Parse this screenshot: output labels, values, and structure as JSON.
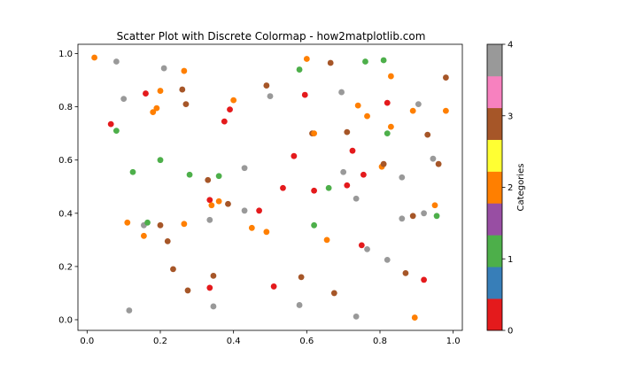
{
  "chart_data": {
    "type": "scatter",
    "title": "Scatter Plot with Discrete Colormap - how2matplotlib.com",
    "xlabel": "",
    "ylabel": "",
    "xlim": [
      -0.025,
      1.025
    ],
    "ylim": [
      -0.04,
      1.035
    ],
    "x_ticks": [
      0.0,
      0.2,
      0.4,
      0.6,
      0.8,
      1.0
    ],
    "x_tick_labels": [
      "0.0",
      "0.2",
      "0.4",
      "0.6",
      "0.8",
      "1.0"
    ],
    "y_ticks": [
      0.0,
      0.2,
      0.4,
      0.6,
      0.8,
      1.0
    ],
    "y_tick_labels": [
      "0.0",
      "0.2",
      "0.4",
      "0.6",
      "0.8",
      "1.0"
    ],
    "grid": false,
    "colormap": {
      "name": "Set1",
      "colors": [
        "#e41a1c",
        "#377eb8",
        "#4daf4a",
        "#984ea3",
        "#ff7f00",
        "#ffff33",
        "#a65628",
        "#f781bf",
        "#999999"
      ],
      "ticks": [
        0,
        1,
        2,
        3,
        4
      ],
      "tick_labels": [
        "0",
        "1",
        "2",
        "3",
        "4"
      ],
      "label": "Categories",
      "vmin": 0,
      "vmax": 4
    },
    "points": [
      {
        "x": 0.02,
        "y": 0.985,
        "c": 2
      },
      {
        "x": 0.08,
        "y": 0.97,
        "c": 4
      },
      {
        "x": 0.21,
        "y": 0.945,
        "c": 4
      },
      {
        "x": 0.265,
        "y": 0.935,
        "c": 2
      },
      {
        "x": 0.58,
        "y": 0.94,
        "c": 1
      },
      {
        "x": 0.6,
        "y": 0.98,
        "c": 2
      },
      {
        "x": 0.665,
        "y": 0.965,
        "c": 3
      },
      {
        "x": 0.76,
        "y": 0.97,
        "c": 1
      },
      {
        "x": 0.81,
        "y": 0.975,
        "c": 1
      },
      {
        "x": 0.83,
        "y": 0.915,
        "c": 2
      },
      {
        "x": 0.98,
        "y": 0.91,
        "c": 3
      },
      {
        "x": 0.1,
        "y": 0.83,
        "c": 4
      },
      {
        "x": 0.16,
        "y": 0.85,
        "c": 0
      },
      {
        "x": 0.2,
        "y": 0.86,
        "c": 2
      },
      {
        "x": 0.26,
        "y": 0.865,
        "c": 3
      },
      {
        "x": 0.49,
        "y": 0.88,
        "c": 3
      },
      {
        "x": 0.5,
        "y": 0.84,
        "c": 4
      },
      {
        "x": 0.595,
        "y": 0.845,
        "c": 0
      },
      {
        "x": 0.695,
        "y": 0.855,
        "c": 4
      },
      {
        "x": 0.27,
        "y": 0.81,
        "c": 3
      },
      {
        "x": 0.4,
        "y": 0.825,
        "c": 2
      },
      {
        "x": 0.39,
        "y": 0.79,
        "c": 0
      },
      {
        "x": 0.19,
        "y": 0.795,
        "c": 2
      },
      {
        "x": 0.18,
        "y": 0.78,
        "c": 2
      },
      {
        "x": 0.74,
        "y": 0.805,
        "c": 2
      },
      {
        "x": 0.82,
        "y": 0.815,
        "c": 0
      },
      {
        "x": 0.89,
        "y": 0.785,
        "c": 2
      },
      {
        "x": 0.905,
        "y": 0.81,
        "c": 4
      },
      {
        "x": 0.98,
        "y": 0.785,
        "c": 2
      },
      {
        "x": 0.065,
        "y": 0.735,
        "c": 0
      },
      {
        "x": 0.08,
        "y": 0.71,
        "c": 1
      },
      {
        "x": 0.375,
        "y": 0.745,
        "c": 0
      },
      {
        "x": 0.615,
        "y": 0.7,
        "c": 3
      },
      {
        "x": 0.62,
        "y": 0.7,
        "c": 2
      },
      {
        "x": 0.71,
        "y": 0.705,
        "c": 3
      },
      {
        "x": 0.765,
        "y": 0.765,
        "c": 2
      },
      {
        "x": 0.82,
        "y": 0.7,
        "c": 1
      },
      {
        "x": 0.83,
        "y": 0.725,
        "c": 2
      },
      {
        "x": 0.93,
        "y": 0.695,
        "c": 3
      },
      {
        "x": 0.2,
        "y": 0.6,
        "c": 1
      },
      {
        "x": 0.125,
        "y": 0.555,
        "c": 1
      },
      {
        "x": 0.28,
        "y": 0.545,
        "c": 1
      },
      {
        "x": 0.33,
        "y": 0.525,
        "c": 3
      },
      {
        "x": 0.36,
        "y": 0.54,
        "c": 1
      },
      {
        "x": 0.43,
        "y": 0.57,
        "c": 4
      },
      {
        "x": 0.565,
        "y": 0.615,
        "c": 0
      },
      {
        "x": 0.7,
        "y": 0.555,
        "c": 4
      },
      {
        "x": 0.725,
        "y": 0.635,
        "c": 0
      },
      {
        "x": 0.755,
        "y": 0.545,
        "c": 0
      },
      {
        "x": 0.805,
        "y": 0.575,
        "c": 2
      },
      {
        "x": 0.81,
        "y": 0.585,
        "c": 3
      },
      {
        "x": 0.86,
        "y": 0.535,
        "c": 4
      },
      {
        "x": 0.945,
        "y": 0.605,
        "c": 4
      },
      {
        "x": 0.96,
        "y": 0.585,
        "c": 3
      },
      {
        "x": 0.535,
        "y": 0.495,
        "c": 0
      },
      {
        "x": 0.62,
        "y": 0.485,
        "c": 0
      },
      {
        "x": 0.66,
        "y": 0.495,
        "c": 1
      },
      {
        "x": 0.71,
        "y": 0.505,
        "c": 0
      },
      {
        "x": 0.335,
        "y": 0.45,
        "c": 0
      },
      {
        "x": 0.34,
        "y": 0.43,
        "c": 2
      },
      {
        "x": 0.36,
        "y": 0.445,
        "c": 2
      },
      {
        "x": 0.385,
        "y": 0.435,
        "c": 3
      },
      {
        "x": 0.43,
        "y": 0.41,
        "c": 4
      },
      {
        "x": 0.47,
        "y": 0.41,
        "c": 0
      },
      {
        "x": 0.735,
        "y": 0.455,
        "c": 4
      },
      {
        "x": 0.89,
        "y": 0.39,
        "c": 3
      },
      {
        "x": 0.86,
        "y": 0.38,
        "c": 4
      },
      {
        "x": 0.92,
        "y": 0.4,
        "c": 4
      },
      {
        "x": 0.95,
        "y": 0.43,
        "c": 2
      },
      {
        "x": 0.955,
        "y": 0.39,
        "c": 1
      },
      {
        "x": 0.11,
        "y": 0.365,
        "c": 2
      },
      {
        "x": 0.155,
        "y": 0.355,
        "c": 4
      },
      {
        "x": 0.165,
        "y": 0.365,
        "c": 1
      },
      {
        "x": 0.155,
        "y": 0.315,
        "c": 2
      },
      {
        "x": 0.2,
        "y": 0.355,
        "c": 3
      },
      {
        "x": 0.265,
        "y": 0.36,
        "c": 2
      },
      {
        "x": 0.335,
        "y": 0.375,
        "c": 4
      },
      {
        "x": 0.45,
        "y": 0.345,
        "c": 2
      },
      {
        "x": 0.49,
        "y": 0.33,
        "c": 2
      },
      {
        "x": 0.62,
        "y": 0.355,
        "c": 1
      },
      {
        "x": 0.22,
        "y": 0.295,
        "c": 3
      },
      {
        "x": 0.655,
        "y": 0.3,
        "c": 2
      },
      {
        "x": 0.75,
        "y": 0.28,
        "c": 0
      },
      {
        "x": 0.765,
        "y": 0.265,
        "c": 4
      },
      {
        "x": 0.235,
        "y": 0.19,
        "c": 3
      },
      {
        "x": 0.82,
        "y": 0.225,
        "c": 4
      },
      {
        "x": 0.345,
        "y": 0.165,
        "c": 3
      },
      {
        "x": 0.585,
        "y": 0.16,
        "c": 3
      },
      {
        "x": 0.87,
        "y": 0.175,
        "c": 3
      },
      {
        "x": 0.92,
        "y": 0.15,
        "c": 0
      },
      {
        "x": 0.275,
        "y": 0.11,
        "c": 3
      },
      {
        "x": 0.335,
        "y": 0.12,
        "c": 0
      },
      {
        "x": 0.51,
        "y": 0.125,
        "c": 0
      },
      {
        "x": 0.675,
        "y": 0.1,
        "c": 3
      },
      {
        "x": 0.115,
        "y": 0.035,
        "c": 4
      },
      {
        "x": 0.345,
        "y": 0.05,
        "c": 4
      },
      {
        "x": 0.58,
        "y": 0.055,
        "c": 4
      },
      {
        "x": 0.735,
        "y": 0.012,
        "c": 4
      },
      {
        "x": 0.895,
        "y": 0.008,
        "c": 2
      }
    ]
  }
}
